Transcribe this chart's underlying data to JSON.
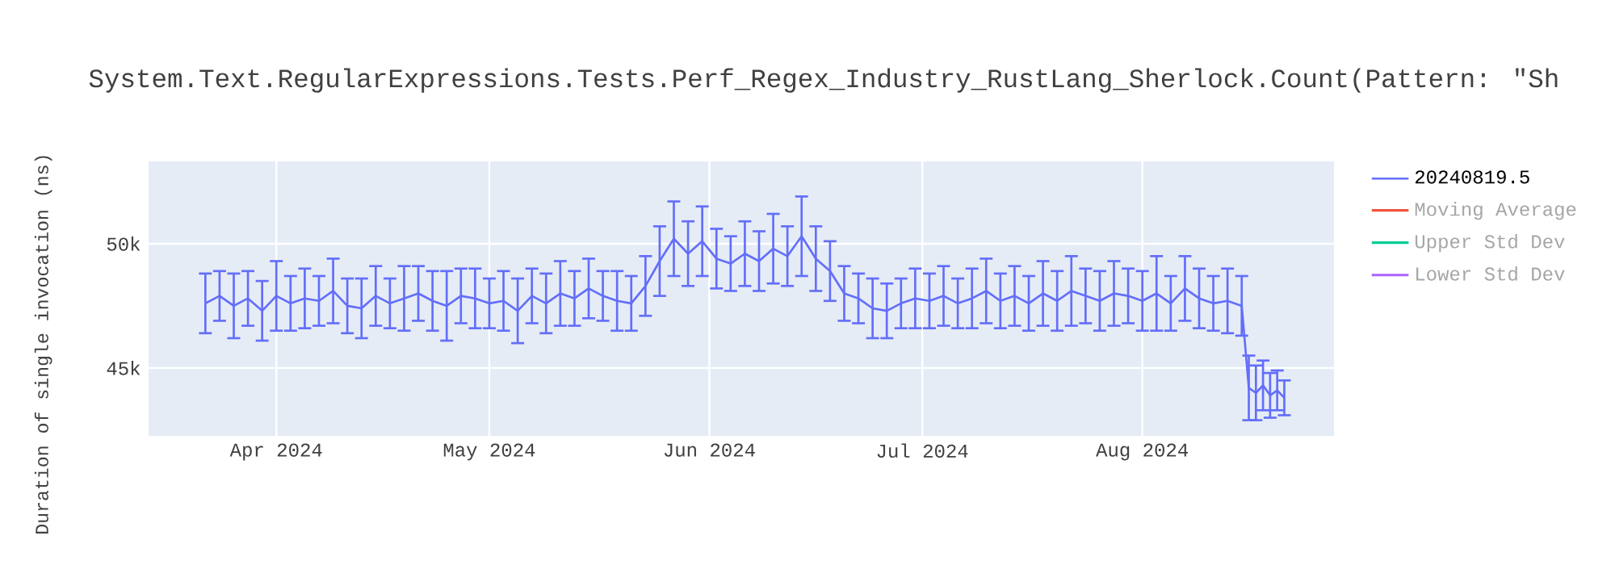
{
  "chart_data": {
    "type": "line",
    "title": "System.Text.RegularExpressions.Tests.Perf_Regex_Industry_RustLang_Sherlock.Count(Pattern: \"Sh",
    "ylabel": "Duration of single invocation (ns)",
    "x": [
      "2024-03-22",
      "2024-03-24",
      "2024-03-26",
      "2024-03-28",
      "2024-03-30",
      "2024-04-01",
      "2024-04-03",
      "2024-04-05",
      "2024-04-07",
      "2024-04-09",
      "2024-04-11",
      "2024-04-13",
      "2024-04-15",
      "2024-04-17",
      "2024-04-19",
      "2024-04-21",
      "2024-04-23",
      "2024-04-25",
      "2024-04-27",
      "2024-04-29",
      "2024-05-01",
      "2024-05-03",
      "2024-05-05",
      "2024-05-07",
      "2024-05-09",
      "2024-05-11",
      "2024-05-13",
      "2024-05-15",
      "2024-05-17",
      "2024-05-19",
      "2024-05-21",
      "2024-05-23",
      "2024-05-25",
      "2024-05-27",
      "2024-05-29",
      "2024-05-31",
      "2024-06-02",
      "2024-06-04",
      "2024-06-06",
      "2024-06-08",
      "2024-06-10",
      "2024-06-12",
      "2024-06-14",
      "2024-06-16",
      "2024-06-18",
      "2024-06-20",
      "2024-06-22",
      "2024-06-24",
      "2024-06-26",
      "2024-06-28",
      "2024-06-30",
      "2024-07-02",
      "2024-07-04",
      "2024-07-06",
      "2024-07-08",
      "2024-07-10",
      "2024-07-12",
      "2024-07-14",
      "2024-07-16",
      "2024-07-18",
      "2024-07-20",
      "2024-07-22",
      "2024-07-24",
      "2024-07-26",
      "2024-07-28",
      "2024-07-30",
      "2024-08-01",
      "2024-08-03",
      "2024-08-05",
      "2024-08-07",
      "2024-08-09",
      "2024-08-11",
      "2024-08-13",
      "2024-08-15",
      "2024-08-16",
      "2024-08-17",
      "2024-08-18",
      "2024-08-19",
      "2024-08-20",
      "2024-08-21"
    ],
    "series": [
      {
        "name": "20240819.5",
        "color": "#636efa",
        "values": [
          47600,
          47900,
          47500,
          47800,
          47300,
          47900,
          47600,
          47800,
          47700,
          48100,
          47500,
          47400,
          47900,
          47600,
          47800,
          48000,
          47700,
          47500,
          47900,
          47800,
          47600,
          47700,
          47300,
          47900,
          47600,
          48000,
          47800,
          48200,
          47900,
          47700,
          47600,
          48300,
          49300,
          50200,
          49600,
          50100,
          49400,
          49200,
          49600,
          49300,
          49800,
          49500,
          50300,
          49400,
          48900,
          48000,
          47800,
          47400,
          47300,
          47600,
          47800,
          47700,
          47900,
          47600,
          47800,
          48100,
          47700,
          47900,
          47600,
          48000,
          47700,
          48100,
          47900,
          47700,
          48000,
          47900,
          47700,
          48000,
          47600,
          48200,
          47800,
          47600,
          47700,
          47500,
          44200,
          44000,
          44300,
          43900,
          44100,
          43800
        ],
        "errors": [
          1200,
          1000,
          1300,
          1100,
          1200,
          1400,
          1100,
          1200,
          1000,
          1300,
          1100,
          1200,
          1200,
          1000,
          1300,
          1100,
          1200,
          1400,
          1100,
          1200,
          1000,
          1200,
          1300,
          1100,
          1200,
          1300,
          1100,
          1200,
          1000,
          1200,
          1100,
          1200,
          1400,
          1500,
          1300,
          1400,
          1200,
          1100,
          1300,
          1200,
          1400,
          1200,
          1600,
          1300,
          1200,
          1100,
          1000,
          1200,
          1100,
          1000,
          1200,
          1100,
          1200,
          1000,
          1200,
          1300,
          1100,
          1200,
          1100,
          1300,
          1200,
          1400,
          1100,
          1200,
          1300,
          1100,
          1200,
          1500,
          1100,
          1300,
          1200,
          1100,
          1300,
          1200,
          1300,
          1100,
          1000,
          900,
          800,
          700
        ]
      },
      {
        "name": "Moving Average",
        "color": "#ef553b",
        "values": [
          null,
          null,
          null,
          null,
          null,
          null,
          null,
          null,
          null,
          null,
          null,
          null,
          null,
          null,
          null,
          null,
          null,
          null,
          null,
          null,
          null,
          null,
          null,
          null,
          null,
          null,
          null,
          null,
          null,
          null,
          null,
          null,
          null,
          null,
          null,
          null,
          null,
          null,
          null,
          null,
          null,
          null,
          null,
          null,
          null,
          null,
          null,
          null,
          null,
          null,
          null,
          null,
          null,
          null,
          null,
          null,
          null,
          null,
          null,
          null,
          null,
          null,
          null,
          null,
          null,
          null,
          null,
          null,
          null,
          null,
          null,
          null,
          null,
          null,
          null,
          null,
          null,
          null,
          null,
          null
        ]
      },
      {
        "name": "Upper Std Dev",
        "color": "#00cc96",
        "values": [
          null,
          null,
          null,
          null,
          null,
          null,
          null,
          null,
          null,
          null,
          null,
          null,
          null,
          null,
          null,
          null,
          null,
          null,
          null,
          null,
          null,
          null,
          null,
          null,
          null,
          null,
          null,
          null,
          null,
          null,
          null,
          null,
          null,
          null,
          null,
          null,
          null,
          null,
          null,
          null,
          null,
          null,
          null,
          null,
          null,
          null,
          null,
          null,
          null,
          null,
          null,
          null,
          null,
          null,
          null,
          null,
          null,
          null,
          null,
          null,
          null,
          null,
          null,
          null,
          null,
          null,
          null,
          null,
          null,
          null,
          null,
          null,
          null,
          null,
          null,
          null,
          null,
          null,
          null,
          null
        ]
      },
      {
        "name": "Lower Std Dev",
        "color": "#ab63fa",
        "values": [
          null,
          null,
          null,
          null,
          null,
          null,
          null,
          null,
          null,
          null,
          null,
          null,
          null,
          null,
          null,
          null,
          null,
          null,
          null,
          null,
          null,
          null,
          null,
          null,
          null,
          null,
          null,
          null,
          null,
          null,
          null,
          null,
          null,
          null,
          null,
          null,
          null,
          null,
          null,
          null,
          null,
          null,
          null,
          null,
          null,
          null,
          null,
          null,
          null,
          null,
          null,
          null,
          null,
          null,
          null,
          null,
          null,
          null,
          null,
          null,
          null,
          null,
          null,
          null,
          null,
          null,
          null,
          null,
          null,
          null,
          null,
          null,
          null,
          null,
          null,
          null,
          null,
          null,
          null,
          null
        ]
      }
    ],
    "xlim": [
      "2024-03-14",
      "2024-08-28"
    ],
    "xticks": [
      {
        "value": "2024-04-01",
        "label": "Apr 2024"
      },
      {
        "value": "2024-05-01",
        "label": "May 2024"
      },
      {
        "value": "2024-06-01",
        "label": "Jun 2024"
      },
      {
        "value": "2024-07-01",
        "label": "Jul 2024"
      },
      {
        "value": "2024-08-01",
        "label": "Aug 2024"
      }
    ],
    "ylim": [
      42270,
      53310
    ],
    "yticks": [
      {
        "value": 45000,
        "label": "45k"
      },
      {
        "value": 50000,
        "label": "50k"
      }
    ],
    "grid": true,
    "legend": "top right",
    "marker": "none",
    "line_style": "solid"
  }
}
